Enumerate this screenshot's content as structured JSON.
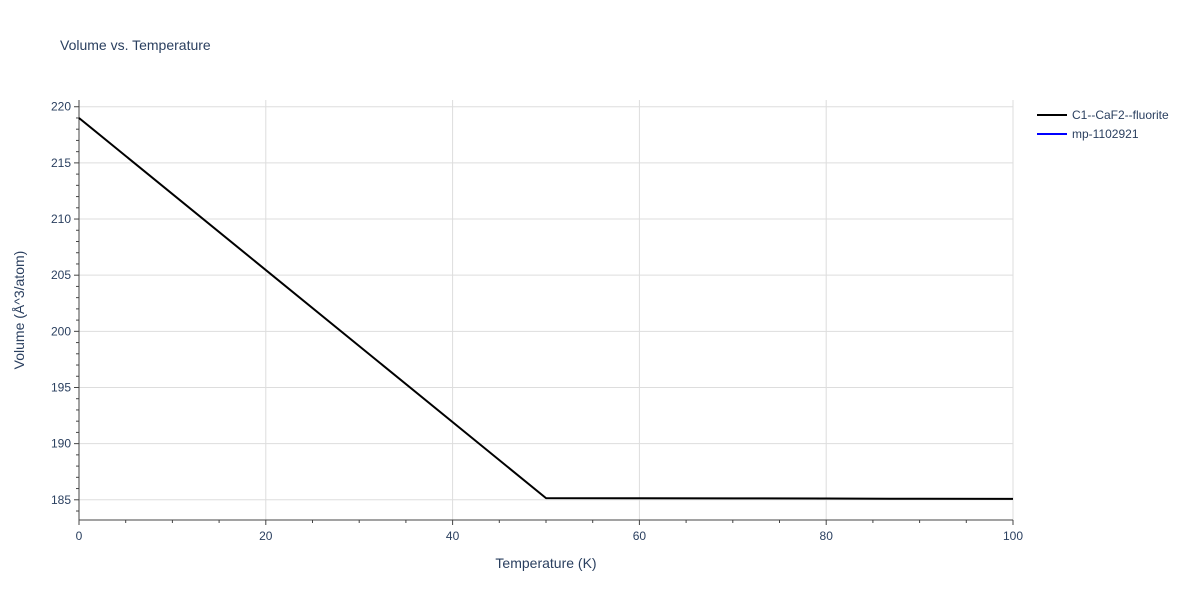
{
  "chart_data": {
    "type": "line",
    "title": "Volume vs. Temperature",
    "xlabel": "Temperature (K)",
    "ylabel": "Volume (Å^3/atom)",
    "xlim": [
      0,
      100
    ],
    "ylim": [
      183.2,
      220.6
    ],
    "x_ticks": [
      0,
      20,
      40,
      60,
      80,
      100
    ],
    "y_ticks": [
      185,
      190,
      195,
      200,
      205,
      210,
      215,
      220
    ],
    "grid": true,
    "legend_position": "top-right",
    "series": [
      {
        "name": "C1--CaF2--fluorite",
        "color": "#000000",
        "x": [
          0,
          50,
          60,
          70,
          80,
          90,
          100
        ],
        "y": [
          219.0,
          185.15,
          185.14,
          185.13,
          185.11,
          185.09,
          185.08
        ]
      },
      {
        "name": "mp-1102921",
        "color": "#0000ff",
        "x": [],
        "y": []
      }
    ]
  }
}
